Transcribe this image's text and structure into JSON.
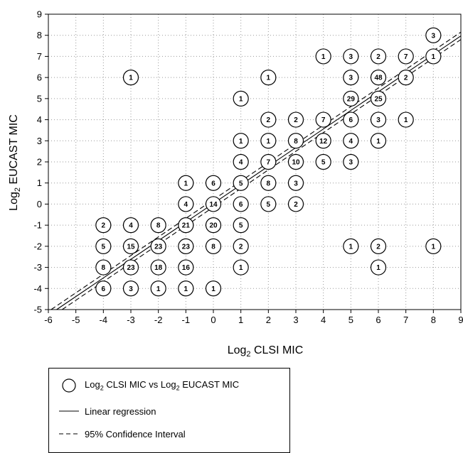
{
  "chart_data": {
    "type": "scatter",
    "xlabel": "Log2 CLSI MIC",
    "ylabel": "Log2 EUCAST MIC",
    "xlabel_base": "Log",
    "xlabel_sub": "2",
    "xlabel_rest": " CLSI MIC",
    "ylabel_base": "Log",
    "ylabel_sub": "2",
    "ylabel_rest": " EUCAST MIC",
    "xlim": [
      -6,
      9
    ],
    "ylim": [
      -5,
      9
    ],
    "xticks": [
      "-6",
      "-5",
      "-4",
      "-3",
      "-2",
      "-1",
      "0",
      "1",
      "2",
      "3",
      "4",
      "5",
      "6",
      "7",
      "8",
      "9"
    ],
    "yticks": [
      "-5",
      "-4",
      "-3",
      "-2",
      "-1",
      "0",
      "1",
      "2",
      "3",
      "4",
      "5",
      "6",
      "7",
      "8",
      "9"
    ],
    "grid": true,
    "points": [
      {
        "x": 8,
        "y": 8,
        "label": "3"
      },
      {
        "x": 4,
        "y": 7,
        "label": "1"
      },
      {
        "x": 5,
        "y": 7,
        "label": "3"
      },
      {
        "x": 6,
        "y": 7,
        "label": "2"
      },
      {
        "x": 7,
        "y": 7,
        "label": "7"
      },
      {
        "x": 8,
        "y": 7,
        "label": "1"
      },
      {
        "x": -3,
        "y": 6,
        "label": "1"
      },
      {
        "x": 2,
        "y": 6,
        "label": "1"
      },
      {
        "x": 5,
        "y": 6,
        "label": "3"
      },
      {
        "x": 6,
        "y": 6,
        "label": "48"
      },
      {
        "x": 7,
        "y": 6,
        "label": "2"
      },
      {
        "x": 1,
        "y": 5,
        "label": "1"
      },
      {
        "x": 5,
        "y": 5,
        "label": "29"
      },
      {
        "x": 6,
        "y": 5,
        "label": "25"
      },
      {
        "x": 2,
        "y": 4,
        "label": "2"
      },
      {
        "x": 3,
        "y": 4,
        "label": "2"
      },
      {
        "x": 4,
        "y": 4,
        "label": "7"
      },
      {
        "x": 5,
        "y": 4,
        "label": "6"
      },
      {
        "x": 6,
        "y": 4,
        "label": "3"
      },
      {
        "x": 7,
        "y": 4,
        "label": "1"
      },
      {
        "x": 1,
        "y": 3,
        "label": "1"
      },
      {
        "x": 2,
        "y": 3,
        "label": "1"
      },
      {
        "x": 3,
        "y": 3,
        "label": "8"
      },
      {
        "x": 4,
        "y": 3,
        "label": "12"
      },
      {
        "x": 5,
        "y": 3,
        "label": "4"
      },
      {
        "x": 6,
        "y": 3,
        "label": "1"
      },
      {
        "x": 1,
        "y": 2,
        "label": "4"
      },
      {
        "x": 2,
        "y": 2,
        "label": "7"
      },
      {
        "x": 3,
        "y": 2,
        "label": "10"
      },
      {
        "x": 4,
        "y": 2,
        "label": "5"
      },
      {
        "x": 5,
        "y": 2,
        "label": "3"
      },
      {
        "x": -1,
        "y": 1,
        "label": "1"
      },
      {
        "x": 0,
        "y": 1,
        "label": "6"
      },
      {
        "x": 1,
        "y": 1,
        "label": "5"
      },
      {
        "x": 2,
        "y": 1,
        "label": "8"
      },
      {
        "x": 3,
        "y": 1,
        "label": "3"
      },
      {
        "x": -1,
        "y": 0,
        "label": "4"
      },
      {
        "x": 0,
        "y": 0,
        "label": "14"
      },
      {
        "x": 1,
        "y": 0,
        "label": "6"
      },
      {
        "x": 2,
        "y": 0,
        "label": "5"
      },
      {
        "x": 3,
        "y": 0,
        "label": "2"
      },
      {
        "x": -4,
        "y": -1,
        "label": "2"
      },
      {
        "x": -3,
        "y": -1,
        "label": "4"
      },
      {
        "x": -2,
        "y": -1,
        "label": "8"
      },
      {
        "x": -1,
        "y": -1,
        "label": "21"
      },
      {
        "x": 0,
        "y": -1,
        "label": "20"
      },
      {
        "x": 1,
        "y": -1,
        "label": "5"
      },
      {
        "x": -4,
        "y": -2,
        "label": "5"
      },
      {
        "x": -3,
        "y": -2,
        "label": "15"
      },
      {
        "x": -2,
        "y": -2,
        "label": "23"
      },
      {
        "x": -1,
        "y": -2,
        "label": "23"
      },
      {
        "x": 0,
        "y": -2,
        "label": "8"
      },
      {
        "x": 1,
        "y": -2,
        "label": "2"
      },
      {
        "x": 5,
        "y": -2,
        "label": "1"
      },
      {
        "x": 6,
        "y": -2,
        "label": "2"
      },
      {
        "x": 8,
        "y": -2,
        "label": "1"
      },
      {
        "x": -4,
        "y": -3,
        "label": "8"
      },
      {
        "x": -3,
        "y": -3,
        "label": "23"
      },
      {
        "x": -2,
        "y": -3,
        "label": "18"
      },
      {
        "x": -1,
        "y": -3,
        "label": "16"
      },
      {
        "x": 1,
        "y": -3,
        "label": "1"
      },
      {
        "x": 6,
        "y": -3,
        "label": "1"
      },
      {
        "x": -4,
        "y": -4,
        "label": "6"
      },
      {
        "x": -3,
        "y": -4,
        "label": "3"
      },
      {
        "x": -2,
        "y": -4,
        "label": "1"
      },
      {
        "x": -1,
        "y": -4,
        "label": "1"
      },
      {
        "x": 0,
        "y": -4,
        "label": "1"
      }
    ],
    "regression": {
      "x": [
        -5.7,
        9
      ],
      "y": [
        -5.0,
        7.97
      ]
    },
    "ci_upper": {
      "x": [
        -5.9,
        9
      ],
      "y": [
        -5.0,
        8.15
      ]
    },
    "ci_lower": {
      "x": [
        -5.5,
        9
      ],
      "y": [
        -5.0,
        7.8
      ]
    },
    "legend": {
      "scatter_base": "Log",
      "scatter_sub": "2",
      "scatter_mid": " CLSI MIC vs Log",
      "scatter_sub2": "2",
      "scatter_rest": " EUCAST MIC",
      "regression": "Linear regression",
      "ci": "95% Confidence Interval"
    }
  }
}
